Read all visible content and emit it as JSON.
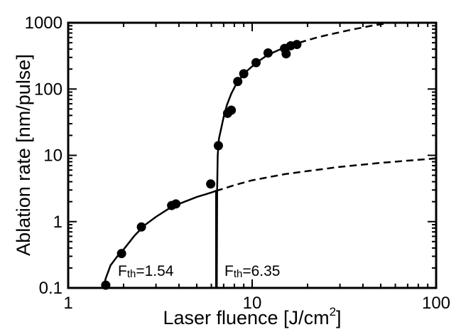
{
  "chart_data": {
    "type": "scatter",
    "x_scale": "log",
    "y_scale": "log",
    "xlim": [
      1,
      100
    ],
    "ylim": [
      0.1,
      1000
    ],
    "xlabel": "Laser fluence [J/cm",
    "xlabel_sup": "2",
    "xlabel_end": "]",
    "ylabel": "Ablation rate [nm/pulse]",
    "x_ticks": [
      {
        "value": 1,
        "label": "1"
      },
      {
        "value": 10,
        "label": "10"
      },
      {
        "value": 100,
        "label": "100"
      }
    ],
    "y_ticks": [
      {
        "value": 0.1,
        "label": "0.1"
      },
      {
        "value": 1,
        "label": "1"
      },
      {
        "value": 10,
        "label": "10"
      },
      {
        "value": 100,
        "label": "100"
      },
      {
        "value": 1000,
        "label": "1000"
      }
    ],
    "grid": false,
    "points": [
      {
        "x": 1.6,
        "y": 0.11
      },
      {
        "x": 1.95,
        "y": 0.33
      },
      {
        "x": 2.5,
        "y": 0.83
      },
      {
        "x": 3.65,
        "y": 1.75
      },
      {
        "x": 3.85,
        "y": 1.85
      },
      {
        "x": 5.95,
        "y": 3.7
      },
      {
        "x": 6.55,
        "y": 14
      },
      {
        "x": 7.35,
        "y": 43
      },
      {
        "x": 7.7,
        "y": 48
      },
      {
        "x": 8.35,
        "y": 130
      },
      {
        "x": 9.0,
        "y": 170
      },
      {
        "x": 10.5,
        "y": 250
      },
      {
        "x": 12.2,
        "y": 350
      },
      {
        "x": 15.0,
        "y": 410
      },
      {
        "x": 15.3,
        "y": 340
      },
      {
        "x": 16.2,
        "y": 450
      },
      {
        "x": 17.5,
        "y": 470
      }
    ],
    "fits": [
      {
        "threshold": 1.54,
        "solid_until": 6.35,
        "dashed_until": 100,
        "points": [
          [
            1.55,
            0.1
          ],
          [
            1.6,
            0.14
          ],
          [
            1.7,
            0.22
          ],
          [
            1.85,
            0.3
          ],
          [
            2.0,
            0.38
          ],
          [
            2.3,
            0.62
          ],
          [
            2.6,
            0.88
          ],
          [
            3.0,
            1.18
          ],
          [
            3.5,
            1.55
          ],
          [
            4.0,
            1.85
          ],
          [
            4.5,
            2.1
          ],
          [
            5.0,
            2.35
          ],
          [
            5.5,
            2.55
          ],
          [
            6.0,
            2.75
          ],
          [
            6.35,
            2.9
          ],
          [
            7,
            3.15
          ],
          [
            8,
            3.55
          ],
          [
            10,
            4.2
          ],
          [
            15,
            5.2
          ],
          [
            20,
            5.8
          ],
          [
            30,
            6.7
          ],
          [
            50,
            7.7
          ],
          [
            70,
            8.3
          ],
          [
            100,
            9.0
          ]
        ]
      },
      {
        "threshold": 6.35,
        "solid_until": 18,
        "dashed_until": 55,
        "points": [
          [
            6.42,
            0.1
          ],
          [
            6.45,
            3
          ],
          [
            6.5,
            10
          ],
          [
            6.6,
            18
          ],
          [
            6.8,
            26
          ],
          [
            7.0,
            38
          ],
          [
            7.3,
            58
          ],
          [
            7.7,
            85
          ],
          [
            8.2,
            120
          ],
          [
            9,
            170
          ],
          [
            10,
            220
          ],
          [
            11,
            270
          ],
          [
            12,
            320
          ],
          [
            14,
            390
          ],
          [
            16,
            450
          ],
          [
            18,
            500
          ],
          [
            22,
            590
          ],
          [
            26,
            660
          ],
          [
            30,
            720
          ],
          [
            35,
            790
          ],
          [
            40,
            850
          ],
          [
            45,
            905
          ],
          [
            50,
            950
          ],
          [
            55,
            990
          ]
        ]
      }
    ],
    "threshold_lines": [
      {
        "x": 6.35,
        "y_from": 0.1,
        "y_to": 3.0
      }
    ],
    "annotations": [
      {
        "text": "F",
        "sub": "th",
        "rest": "=1.54"
      },
      {
        "text": "F",
        "sub": "th",
        "rest": "=6.35"
      }
    ]
  }
}
